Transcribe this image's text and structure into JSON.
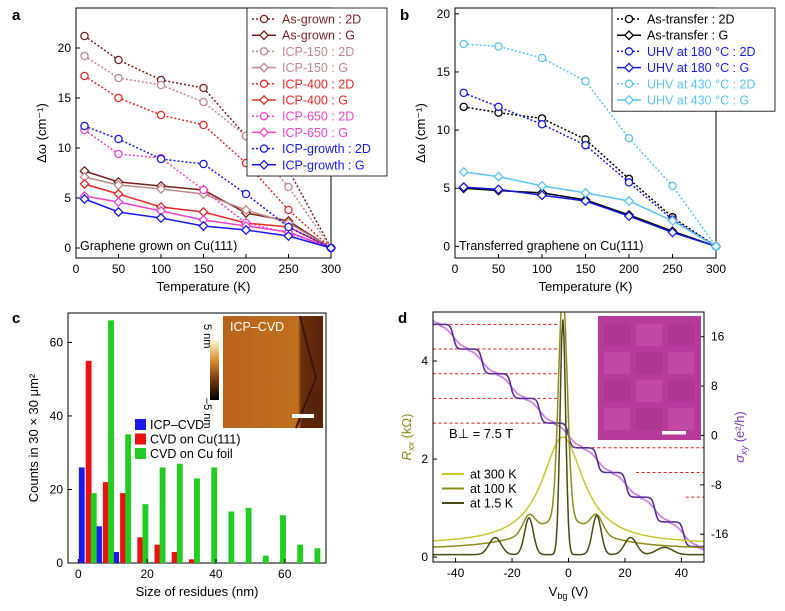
{
  "panels": {
    "a": {
      "letter": "a"
    },
    "b": {
      "letter": "b"
    },
    "c": {
      "letter": "c"
    },
    "d": {
      "letter": "d"
    }
  },
  "chart_data": [
    {
      "id": "a",
      "type": "line",
      "xlabel": "Temperature (K)",
      "ylabel": "Δω (cm⁻¹)",
      "xlim": [
        0,
        300
      ],
      "ylim": [
        -1,
        24
      ],
      "xticks": [
        0,
        50,
        100,
        150,
        200,
        250,
        300
      ],
      "yticks": [
        0,
        5,
        10,
        15,
        20
      ],
      "annotation": "Graphene grown on Cu(111)",
      "legend_position": "top-right",
      "x": [
        10,
        50,
        100,
        150,
        200,
        250,
        300
      ],
      "series": [
        {
          "name": "As-grown : 2D",
          "color": "#7a1f1f",
          "marker": "circle",
          "dash": "dot",
          "values": [
            21.2,
            18.8,
            16.8,
            16.0,
            11.2,
            7.8,
            0
          ]
        },
        {
          "name": "As-grown : G",
          "color": "#7a1f1f",
          "marker": "diamond",
          "dash": "solid",
          "values": [
            7.7,
            6.6,
            6.2,
            5.8,
            3.5,
            2.7,
            0
          ]
        },
        {
          "name": "ICP-150 : 2D",
          "color": "#c08a8a",
          "marker": "circle",
          "dash": "dot",
          "values": [
            19.2,
            17.0,
            16.3,
            14.6,
            11.2,
            6.1,
            0
          ]
        },
        {
          "name": "ICP-150 : G",
          "color": "#c08a8a",
          "marker": "diamond",
          "dash": "solid",
          "values": [
            7.1,
            6.3,
            5.9,
            5.4,
            3.8,
            2.5,
            0
          ]
        },
        {
          "name": "ICP-400 : 2D",
          "color": "#e8282a",
          "marker": "circle",
          "dash": "dot",
          "values": [
            17.2,
            15.0,
            13.3,
            12.3,
            8.5,
            3.8,
            0
          ]
        },
        {
          "name": "ICP-400 : G",
          "color": "#e8282a",
          "marker": "diamond",
          "dash": "solid",
          "values": [
            6.4,
            5.4,
            4.1,
            3.6,
            2.5,
            2.1,
            0
          ]
        },
        {
          "name": "ICP-650 : 2D",
          "color": "#ee44cc",
          "marker": "circle",
          "dash": "dot",
          "values": [
            11.8,
            9.4,
            9.0,
            5.8,
            2.5,
            1.5,
            0
          ]
        },
        {
          "name": "ICP-650 : G",
          "color": "#ee44cc",
          "marker": "diamond",
          "dash": "solid",
          "values": [
            5.2,
            4.6,
            3.7,
            2.8,
            2.2,
            1.6,
            0
          ]
        },
        {
          "name": "ICP-growth : 2D",
          "color": "#1a1aee",
          "marker": "circle",
          "dash": "dot",
          "values": [
            12.2,
            10.9,
            8.9,
            8.4,
            5.4,
            2.1,
            0
          ]
        },
        {
          "name": "ICP-growth : G",
          "color": "#1a1aee",
          "marker": "diamond",
          "dash": "solid",
          "values": [
            4.9,
            3.6,
            3.0,
            2.2,
            1.8,
            1.2,
            0
          ]
        }
      ]
    },
    {
      "id": "b",
      "type": "line",
      "xlabel": "Temperature (K)",
      "ylabel": "Δω (cm⁻¹)",
      "xlim": [
        0,
        300
      ],
      "ylim": [
        -1,
        20.5
      ],
      "xticks": [
        0,
        50,
        100,
        150,
        200,
        250,
        300
      ],
      "yticks": [
        0,
        5,
        10,
        15,
        20
      ],
      "annotation": "Transferred graphene on Cu(111)",
      "legend_position": "top-right",
      "x": [
        10,
        50,
        100,
        150,
        200,
        250,
        300
      ],
      "series": [
        {
          "name": "As-transfer : 2D",
          "color": "#000000",
          "marker": "circle",
          "dash": "dot",
          "values": [
            12.0,
            11.5,
            11.0,
            9.2,
            5.8,
            2.5,
            0
          ]
        },
        {
          "name": "As-transfer : G",
          "color": "#000000",
          "marker": "diamond",
          "dash": "solid",
          "values": [
            5.0,
            4.8,
            4.6,
            4.0,
            2.7,
            1.3,
            0
          ]
        },
        {
          "name": "UHV at 180 °C : 2D",
          "color": "#1a1aee",
          "marker": "circle",
          "dash": "dot",
          "values": [
            13.2,
            12.0,
            10.5,
            8.7,
            5.5,
            2.3,
            0
          ]
        },
        {
          "name": "UHV at 180 °C : G",
          "color": "#1a1aee",
          "marker": "diamond",
          "dash": "solid",
          "values": [
            5.1,
            4.9,
            4.4,
            3.9,
            2.6,
            1.2,
            0
          ]
        },
        {
          "name": "UHV at 430 °C : 2D",
          "color": "#5fc3f0",
          "marker": "circle",
          "dash": "dot",
          "values": [
            17.4,
            17.2,
            16.2,
            14.2,
            9.3,
            5.2,
            0
          ]
        },
        {
          "name": "UHV at 430 °C : G",
          "color": "#5fc3f0",
          "marker": "diamond",
          "dash": "solid",
          "values": [
            6.4,
            6.0,
            5.2,
            4.6,
            3.9,
            2.2,
            0
          ]
        }
      ]
    },
    {
      "id": "c",
      "type": "bar",
      "xlabel": "Size of residues (nm)",
      "ylabel": "Counts in 30 × 30 μm²",
      "xlim": [
        -3,
        72
      ],
      "ylim": [
        0,
        68
      ],
      "xticks": [
        0,
        20,
        40,
        60
      ],
      "yticks": [
        0,
        20,
        40,
        60
      ],
      "legend_position": "middle",
      "series": [
        {
          "name": "ICP–CVD",
          "color": "#1a1aee",
          "bins": [
            1,
            6,
            11
          ],
          "values": [
            26,
            10,
            3
          ]
        },
        {
          "name": "CVD on Cu(111)",
          "color": "#ee1111",
          "bins": [
            3,
            8,
            13,
            18,
            23,
            28,
            33
          ],
          "values": [
            55,
            22,
            19,
            7,
            5,
            3,
            1
          ]
        },
        {
          "name": "CVD on Cu foil",
          "color": "#22cc22",
          "bins": [
            4.5,
            9.5,
            14.5,
            19.5,
            24.5,
            29.5,
            34.5,
            39.5,
            44.5,
            49.5,
            54.5,
            59.5,
            64.5,
            69.5
          ],
          "values": [
            19,
            66,
            35,
            16,
            26,
            27,
            23,
            26,
            14,
            15,
            2,
            13,
            5,
            4
          ]
        }
      ],
      "inset": {
        "label": "ICP–CVD",
        "colorbar_top": "5 nm",
        "colorbar_bottom": "–5 nm"
      }
    },
    {
      "id": "d",
      "type": "line",
      "xlabel": "V_bg (V)",
      "ylabel_left": "R_xx (kΩ)",
      "ylabel_right": "σ_xy (e²/h)",
      "xlim": [
        -48,
        48
      ],
      "ylim_left": [
        -0.1,
        5.0
      ],
      "ylim_right": [
        -20.5,
        20
      ],
      "xticks": [
        -40,
        -20,
        0,
        20,
        40
      ],
      "yticks_left": [
        0,
        2,
        4
      ],
      "yticks_right": [
        16,
        8,
        0,
        -8,
        -16
      ],
      "field_label": "B⊥ = 7.5 T",
      "legend_position": "lower-left",
      "sigma_plateaus": [
        18,
        14,
        10,
        6,
        2,
        -2,
        -6,
        -10,
        -14,
        -18
      ],
      "series": [
        {
          "name": "at 300 K",
          "color": "#c8c832",
          "axis": "left",
          "values": "Rxx vs Vbg"
        },
        {
          "name": "at 100 K",
          "color": "#8c8c20",
          "axis": "left",
          "values": "Rxx vs Vbg"
        },
        {
          "name": "at 1.5 K",
          "color": "#4a4a14",
          "axis": "left",
          "values": "Rxx vs Vbg"
        },
        {
          "name": "σxy 100 K",
          "color": "#c97ee6",
          "axis": "right",
          "values": "sigma vs Vbg"
        },
        {
          "name": "σxy 1.5 K",
          "color": "#5a2ea0",
          "axis": "right",
          "values": "sigma vs Vbg"
        }
      ]
    }
  ]
}
